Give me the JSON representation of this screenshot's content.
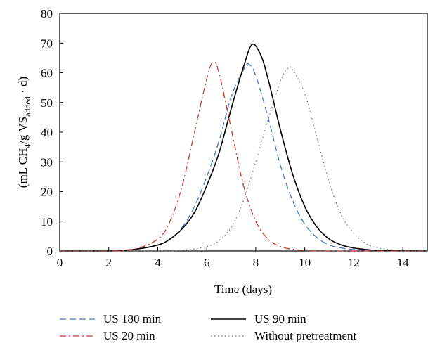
{
  "chart_data": {
    "type": "line",
    "title": "",
    "xlabel": "Time (days)",
    "ylabel_parts": {
      "prefix": "(mL CH",
      "sub1": "4",
      "middle": "/g VS",
      "sub2": "added",
      "suffix": " · d)"
    },
    "xlim": [
      0,
      15
    ],
    "ylim": [
      0,
      80
    ],
    "xticks": [
      0,
      2,
      4,
      6,
      8,
      10,
      12,
      14
    ],
    "yticks": [
      0,
      10,
      20,
      30,
      40,
      50,
      60,
      70,
      80
    ],
    "grid": false,
    "legend_position": "bottom",
    "series": [
      {
        "name": "US 180 min",
        "color": "#4a72c0",
        "style": "dashed",
        "x": [
          0,
          2,
          3,
          4,
          4.5,
          5,
          5.5,
          6,
          6.5,
          7,
          7.5,
          7.7,
          8,
          8.5,
          9,
          9.5,
          10,
          10.5,
          11,
          11.5,
          12,
          13,
          15
        ],
        "y": [
          0,
          0,
          0.5,
          2,
          4,
          8,
          15,
          25,
          37,
          52,
          61,
          63,
          59,
          45,
          29,
          17,
          9,
          4.5,
          2,
          1,
          0.5,
          0.1,
          0
        ]
      },
      {
        "name": "US 90 min",
        "color": "#000000",
        "style": "solid",
        "x": [
          0,
          2,
          3,
          4,
          4.5,
          5,
          5.5,
          6,
          6.5,
          7,
          7.5,
          7.85,
          8.2,
          8.5,
          9,
          9.5,
          10,
          10.5,
          11,
          11.5,
          12,
          12.5,
          13,
          15
        ],
        "y": [
          0,
          0,
          0.5,
          2,
          4,
          7.5,
          13,
          22,
          33,
          48,
          62,
          69.5,
          66,
          58,
          41,
          26,
          15,
          8,
          4,
          2,
          1,
          0.5,
          0.2,
          0
        ]
      },
      {
        "name": "US 20 min",
        "color": "#c23b30",
        "style": "dashdot",
        "x": [
          0,
          2,
          3,
          4,
          4.5,
          5,
          5.5,
          6,
          6.25,
          6.5,
          7,
          7.5,
          8,
          8.5,
          9,
          9.5,
          10,
          11,
          15
        ],
        "y": [
          0,
          0,
          0.5,
          4,
          10,
          22,
          40,
          58,
          63.5,
          60,
          41,
          22,
          10,
          4,
          1.5,
          0.6,
          0.2,
          0,
          0
        ]
      },
      {
        "name": "Without pretreatment",
        "color": "#777777",
        "style": "dotted",
        "x": [
          0,
          4,
          5,
          6,
          6.5,
          7,
          7.5,
          8,
          8.5,
          9,
          9.3,
          9.5,
          10,
          10.5,
          11,
          11.5,
          12,
          12.5,
          13,
          14,
          15
        ],
        "y": [
          0,
          0,
          0.2,
          1.5,
          3.5,
          8,
          17,
          30,
          44,
          57,
          61.5,
          61,
          53,
          38,
          23,
          12,
          6,
          2.5,
          1,
          0.1,
          0
        ]
      }
    ]
  }
}
